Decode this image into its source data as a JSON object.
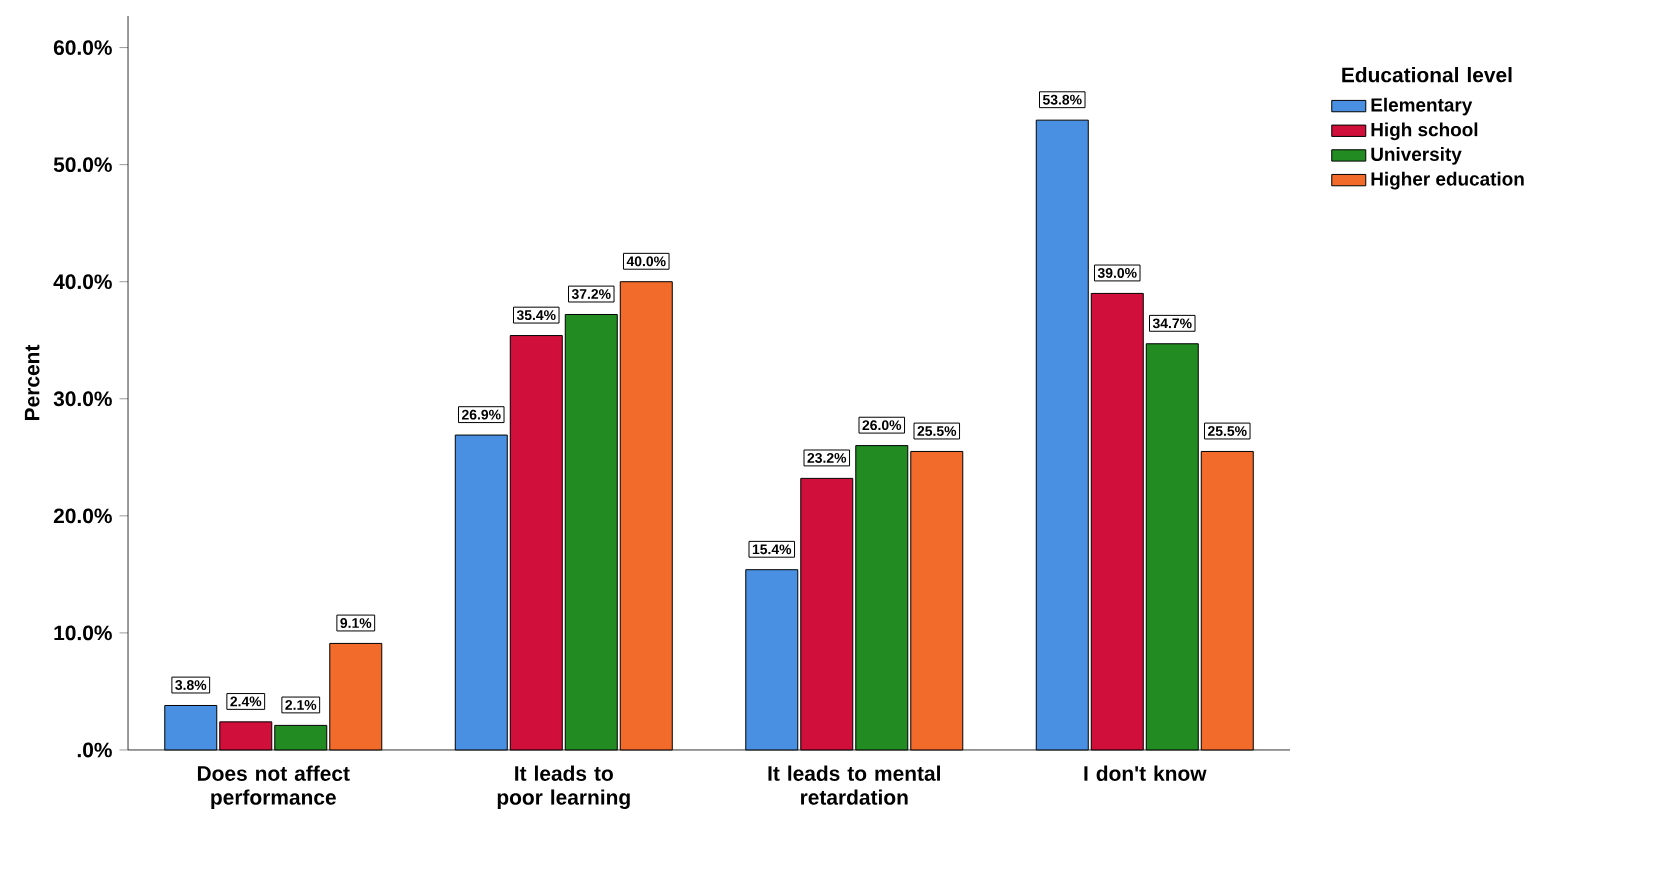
{
  "chart_data": {
    "type": "bar",
    "ylabel": "Percent",
    "legend_title": "Educational level",
    "legend": "top right",
    "categories": [
      "Does not affect performance",
      "It leads to poor learning",
      "It leads to mental retardation",
      "I don't know"
    ],
    "series": [
      {
        "name": "Elementary",
        "color": "#4a90e2",
        "values": [
          3.8,
          26.9,
          15.4,
          53.8
        ],
        "value_labels": [
          "3.8%",
          "26.9%",
          "15.4%",
          "53.8%"
        ]
      },
      {
        "name": "High school",
        "color": "#d0103a",
        "values": [
          2.4,
          35.4,
          23.2,
          39.0
        ],
        "value_labels": [
          "2.4%",
          "35.4%",
          "23.2%",
          "39.0%"
        ]
      },
      {
        "name": "University",
        "color": "#228b22",
        "values": [
          2.1,
          37.2,
          26.0,
          34.7
        ],
        "value_labels": [
          "2.1%",
          "37.2%",
          "26.0%",
          "34.7%"
        ]
      },
      {
        "name": "Higher education",
        "color": "#f26b2a",
        "values": [
          9.1,
          40.0,
          25.5,
          25.5
        ],
        "value_labels": [
          "9.1%",
          "40.0%",
          "25.5%",
          "25.5%"
        ]
      }
    ],
    "ylim": [
      0,
      62.7
    ],
    "yticks": [
      {
        "value": 0,
        "label": ".0%"
      },
      {
        "value": 10,
        "label": "10.0%"
      },
      {
        "value": 20,
        "label": "20.0%"
      },
      {
        "value": 30,
        "label": "30.0%"
      },
      {
        "value": 40,
        "label": "40.0%"
      },
      {
        "value": 50,
        "label": "50.0%"
      },
      {
        "value": 60,
        "label": "60.0%"
      }
    ]
  }
}
